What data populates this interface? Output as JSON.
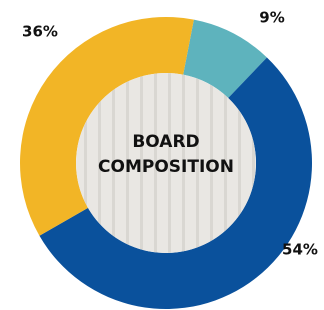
{
  "chart_data": {
    "type": "donut",
    "title": "BOARD COMPOSITION",
    "values": [
      9,
      54,
      36
    ],
    "value_labels": [
      "9%",
      "54%",
      "36%"
    ],
    "colors": [
      "#5eb3bd",
      "#0a519c",
      "#f2b526"
    ]
  }
}
